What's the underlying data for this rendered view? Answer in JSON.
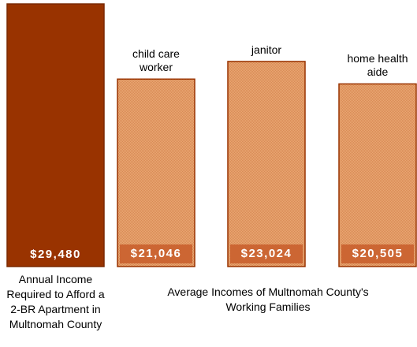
{
  "chart_data": {
    "type": "bar",
    "categories": [
      "child care worker",
      "janitor",
      "home health aide"
    ],
    "reference": {
      "label": "Annual Income Required to Afford a 2-BR Apartment in Multnomah County",
      "label_lines": [
        "Annual Income",
        "Required to Afford a",
        "2-BR Apartment in",
        "Multnomah County"
      ],
      "value": 29480,
      "value_label": "$29,480",
      "color": "#993300"
    },
    "bars": [
      {
        "label_lines": [
          "child care",
          "worker"
        ],
        "value": 21046,
        "value_label": "$21,046",
        "color": "#E8A06B"
      },
      {
        "label_lines": [
          "janitor"
        ],
        "value": 23024,
        "value_label": "$23,024",
        "color": "#E8A06B"
      },
      {
        "label_lines": [
          "home health",
          "aide"
        ],
        "value": 20505,
        "value_label": "$20,505",
        "color": "#E8A06B"
      }
    ],
    "group_label_lines": [
      "Average Incomes of Multnomah County's",
      "Working Families"
    ],
    "ylim": [
      0,
      30000
    ],
    "grid": false,
    "border_color": "#993300",
    "value_box_color": "#CC6633"
  }
}
